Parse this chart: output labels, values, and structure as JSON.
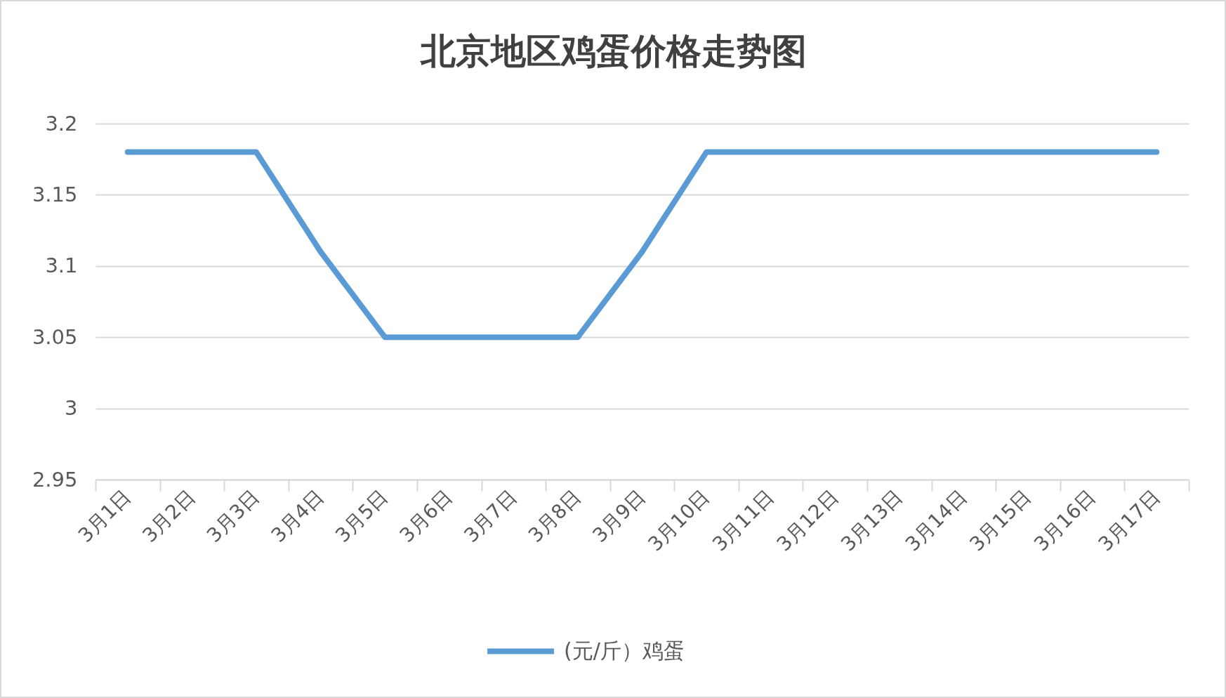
{
  "chart_data": {
    "type": "line",
    "title": "北京地区鸡蛋价格走势图",
    "categories": [
      "3月1日",
      "3月2日",
      "3月3日",
      "3月4日",
      "3月5日",
      "3月6日",
      "3月7日",
      "3月8日",
      "3月9日",
      "3月10日",
      "3月11日",
      "3月12日",
      "3月13日",
      "3月14日",
      "3月15日",
      "3月16日",
      "3月17日"
    ],
    "series": [
      {
        "name": "(元/斤）鸡蛋",
        "color": "#5b9bd5",
        "values": [
          3.18,
          3.18,
          3.18,
          3.11,
          3.05,
          3.05,
          3.05,
          3.05,
          3.11,
          3.18,
          3.18,
          3.18,
          3.18,
          3.18,
          3.18,
          3.18,
          3.18
        ]
      }
    ],
    "ylim": [
      2.95,
      3.2
    ],
    "yticks": [
      2.95,
      3,
      3.05,
      3.1,
      3.15,
      3.2
    ],
    "grid": "y",
    "legend": "bottom",
    "marker": "none",
    "line_style": "solid"
  }
}
